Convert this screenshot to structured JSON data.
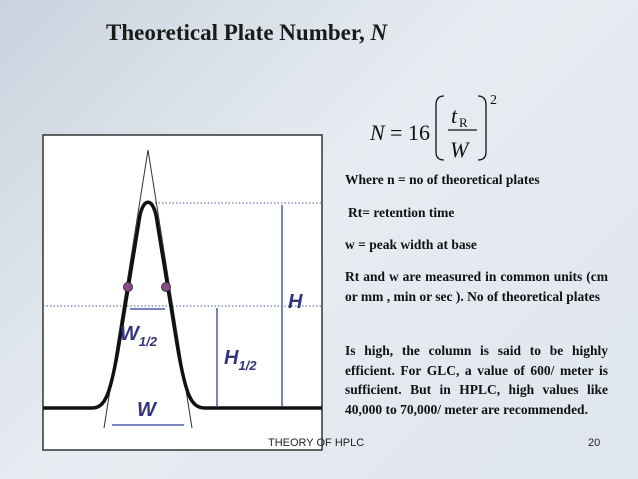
{
  "title": {
    "text": "Theoretical Plate Number, ",
    "symbol": "N"
  },
  "formula": {
    "lhs": "N",
    "equals": "=",
    "coefficient": "16",
    "numerator": "t",
    "numerator_subscript": "R",
    "denominator": "W",
    "exponent": "2"
  },
  "paragraphs": [
    "Where  n = no of theoretical plates",
    "Rt= retention time",
    "w = peak width at base",
    "Rt and w are measured in common units (cm or mm , min or sec ). No of  theoretical plates",
    "Is high, the column is said to be highly efficient. For GLC, a value of 600/ meter is sufficient. But in HPLC, high values like 40,000 to 70,000/ meter are recommended."
  ],
  "diagram": {
    "labels": {
      "height": "H",
      "half_width": "W",
      "half_width_sub": "1/2",
      "half_height": "H",
      "half_height_sub": "1/2",
      "width": "W"
    }
  },
  "footer": {
    "text": "THEORY OF HPLC",
    "page": "20"
  }
}
